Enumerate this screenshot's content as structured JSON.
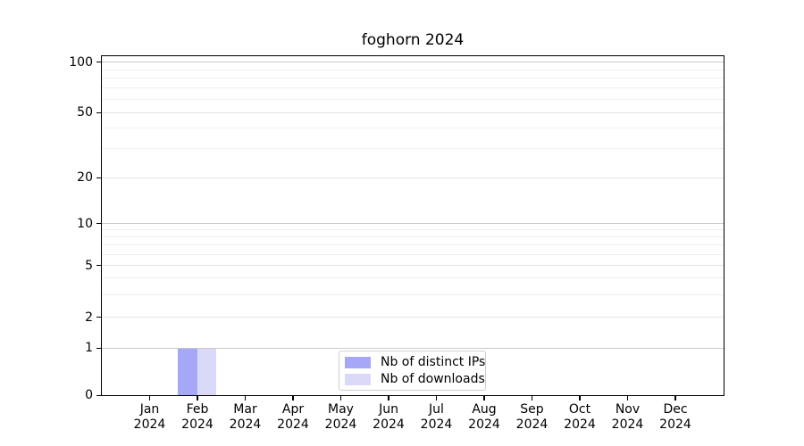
{
  "chart_data": {
    "type": "bar",
    "title": "foghorn 2024",
    "categories": [
      "Jan",
      "Feb",
      "Mar",
      "Apr",
      "May",
      "Jun",
      "Jul",
      "Aug",
      "Sep",
      "Oct",
      "Nov",
      "Dec"
    ],
    "year_label": "2024",
    "series": [
      {
        "name": "Nb of distinct IPs",
        "color": "#a7a7f7",
        "values": [
          0,
          1,
          0,
          0,
          0,
          0,
          0,
          0,
          0,
          0,
          0,
          0
        ]
      },
      {
        "name": "Nb of downloads",
        "color": "#dadaf8",
        "values": [
          0,
          1,
          0,
          0,
          0,
          0,
          0,
          0,
          0,
          0,
          0,
          0
        ]
      }
    ],
    "y_ticks": [
      0,
      1,
      2,
      5,
      10,
      20,
      50,
      100
    ],
    "ylim": [
      0,
      110
    ],
    "yscale": "asinh-log",
    "grid": "horizontal, minor lines on",
    "legend_position": "lower center",
    "axis_color": "#000000",
    "grid_major_color": "#c9c9c9",
    "grid_minor_color": "#efefef",
    "background_color": "#ffffff"
  }
}
